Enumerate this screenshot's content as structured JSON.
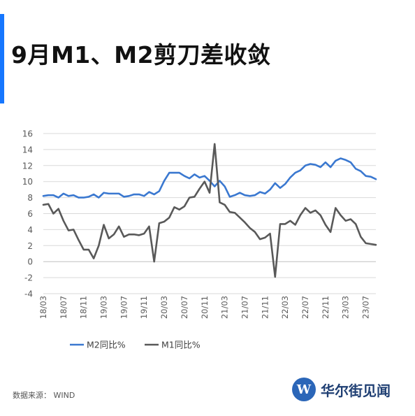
{
  "title": "9月M1、M2剪刀差收敛",
  "source": "数据来源： WIND",
  "brand": {
    "logo_letter": "W",
    "name": "华尔街见闻",
    "color": "#2b66b8"
  },
  "chart_data": {
    "type": "line",
    "title": "",
    "xlabel": "",
    "ylabel": "",
    "ylim": [
      -4,
      16
    ],
    "yticks": [
      -4,
      -2,
      0,
      2,
      4,
      6,
      8,
      10,
      12,
      14,
      16
    ],
    "grid": true,
    "legend_position": "bottom-left",
    "x_tick_labels": [
      "18/03",
      "18/07",
      "18/11",
      "19/03",
      "19/07",
      "19/11",
      "20/03",
      "20/07",
      "20/11",
      "21/03",
      "21/07",
      "21/11",
      "22/03",
      "22/07",
      "22/11",
      "23/03",
      "23/07"
    ],
    "x": [
      "2018-03",
      "2018-04",
      "2018-05",
      "2018-06",
      "2018-07",
      "2018-08",
      "2018-09",
      "2018-10",
      "2018-11",
      "2018-12",
      "2019-01",
      "2019-02",
      "2019-03",
      "2019-04",
      "2019-05",
      "2019-06",
      "2019-07",
      "2019-08",
      "2019-09",
      "2019-10",
      "2019-11",
      "2019-12",
      "2020-01",
      "2020-02",
      "2020-03",
      "2020-04",
      "2020-05",
      "2020-06",
      "2020-07",
      "2020-08",
      "2020-09",
      "2020-10",
      "2020-11",
      "2020-12",
      "2021-01",
      "2021-02",
      "2021-03",
      "2021-04",
      "2021-05",
      "2021-06",
      "2021-07",
      "2021-08",
      "2021-09",
      "2021-10",
      "2021-11",
      "2021-12",
      "2022-01",
      "2022-02",
      "2022-03",
      "2022-04",
      "2022-05",
      "2022-06",
      "2022-07",
      "2022-08",
      "2022-09",
      "2022-10",
      "2022-11",
      "2022-12",
      "2023-01",
      "2023-02",
      "2023-03",
      "2023-04",
      "2023-05",
      "2023-06",
      "2023-07",
      "2023-08",
      "2023-09"
    ],
    "series": [
      {
        "name": "M2同比%",
        "color": "#3a78d0",
        "values": [
          8.2,
          8.3,
          8.3,
          8.0,
          8.5,
          8.2,
          8.3,
          8.0,
          8.0,
          8.1,
          8.4,
          8.0,
          8.6,
          8.5,
          8.5,
          8.5,
          8.1,
          8.2,
          8.4,
          8.4,
          8.2,
          8.7,
          8.4,
          8.8,
          10.1,
          11.1,
          11.1,
          11.1,
          10.7,
          10.4,
          10.9,
          10.5,
          10.7,
          10.1,
          9.4,
          10.1,
          9.4,
          8.1,
          8.3,
          8.6,
          8.3,
          8.2,
          8.3,
          8.7,
          8.5,
          9.0,
          9.8,
          9.2,
          9.7,
          10.5,
          11.1,
          11.4,
          12.0,
          12.2,
          12.1,
          11.8,
          12.4,
          11.8,
          12.6,
          12.9,
          12.7,
          12.4,
          11.6,
          11.3,
          10.7,
          10.6,
          10.3
        ]
      },
      {
        "name": "M1同比%",
        "color": "#595959",
        "values": [
          7.1,
          7.2,
          6.0,
          6.6,
          5.1,
          3.9,
          4.0,
          2.7,
          1.5,
          1.5,
          0.4,
          2.0,
          4.6,
          2.9,
          3.4,
          4.4,
          3.1,
          3.4,
          3.4,
          3.3,
          3.5,
          4.4,
          0.0,
          4.8,
          5.0,
          5.5,
          6.8,
          6.5,
          6.9,
          8.0,
          8.1,
          9.1,
          10.0,
          8.6,
          14.7,
          7.4,
          7.1,
          6.2,
          6.1,
          5.5,
          4.9,
          4.2,
          3.7,
          2.8,
          3.0,
          3.5,
          -1.9,
          4.7,
          4.7,
          5.1,
          4.6,
          5.8,
          6.7,
          6.1,
          6.4,
          5.8,
          4.6,
          3.7,
          6.7,
          5.8,
          5.1,
          5.3,
          4.7,
          3.1,
          2.3,
          2.2,
          2.1
        ]
      }
    ]
  }
}
